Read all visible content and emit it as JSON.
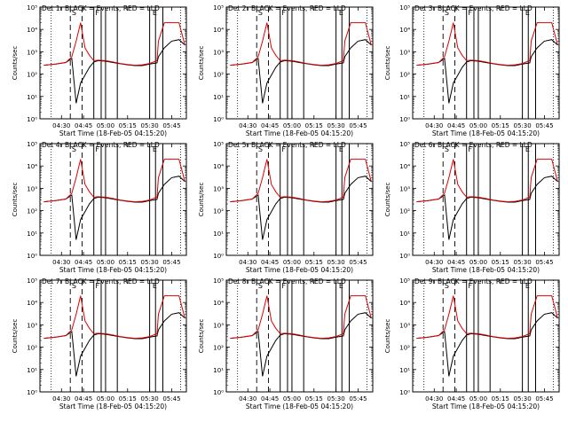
{
  "figure": {
    "shared": {
      "ylabel": "Counts/sec",
      "xlabel": "Start Time (18-Feb-05 04:15:20)",
      "x_ticks": [
        "04:30",
        "04:45",
        "05:00",
        "05:15",
        "05:30",
        "05:45"
      ],
      "y_ticks": [
        "10⁰",
        "10¹",
        "10²",
        "10³",
        "10⁴",
        "10⁵"
      ],
      "title_suffix": "BLACK = Events, RED = LLD",
      "colors": {
        "events": "#000000",
        "lld": "#dd0000",
        "axes": "#000000"
      },
      "segment_letters": [
        "S",
        "F",
        "E"
      ]
    },
    "panels": [
      {
        "title": "Det 1r BLACK = Events, RED = LLD"
      },
      {
        "title": "Det 2r BLACK = Events, RED = LLD"
      },
      {
        "title": "Det 3r BLACK = Events, RED = LLD"
      },
      {
        "title": "Det 4r BLACK = Events, RED = LLD"
      },
      {
        "title": "Det 5r BLACK = Events, RED = LLD"
      },
      {
        "title": "Det 6r BLACK = Events, RED = LLD"
      },
      {
        "title": "Det 7r BLACK = Events, RED = LLD"
      },
      {
        "title": "Det 8r BLACK = Events, RED = LLD"
      },
      {
        "title": "Det 9r BLACK = Events, RED = LLD"
      }
    ]
  },
  "chart_data": {
    "type": "line",
    "scale": "log-y",
    "x_unit": "minutes since 04:15:20",
    "xlim": [
      "04:15:20",
      "05:55:00"
    ],
    "ylim": [
      1,
      100000
    ],
    "x": [
      "04:18",
      "04:26",
      "04:33",
      "04:37",
      "04:40",
      "04:43",
      "04:46",
      "04:49",
      "04:52",
      "04:55",
      "05:00",
      "05:05",
      "05:10",
      "05:15",
      "05:20",
      "05:25",
      "05:30",
      "05:35",
      "05:36",
      "05:40",
      "05:45",
      "05:50",
      "05:54"
    ],
    "series": [
      {
        "name": "Events",
        "values": [
          250,
          280,
          330,
          500,
          5,
          40,
          90,
          200,
          350,
          400,
          380,
          330,
          290,
          260,
          240,
          240,
          280,
          320,
          600,
          1500,
          3000,
          3500,
          2000
        ]
      },
      {
        "name": "LLD",
        "values": [
          250,
          280,
          330,
          600,
          3000,
          20000,
          1500,
          700,
          400,
          420,
          400,
          350,
          300,
          270,
          250,
          260,
          300,
          400,
          3000,
          20000,
          20000,
          20000,
          2000
        ]
      }
    ],
    "vlines_dotted": [
      "04:23",
      "05:51"
    ],
    "vlines_dashed": [
      "04:36",
      "04:44"
    ],
    "vlines_solid": [
      "04:52",
      "04:57",
      "05:00",
      "05:08",
      "05:30",
      "05:34",
      "05:39"
    ]
  }
}
